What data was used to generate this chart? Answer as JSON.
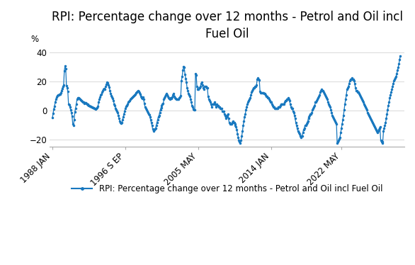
{
  "title": "RPI: Percentage change over 12 months - Petrol and Oil incl\nFuel Oil",
  "ylabel": "%",
  "legend_label": "RPI: Percentage change over 12 months - Petrol and Oil incl Fuel Oil",
  "line_color": "#1878bf",
  "marker_color": "#1878bf",
  "background_color": "#ffffff",
  "grid_color": "#d9d9d9",
  "ylim": [
    -25,
    45
  ],
  "yticks": [
    -20,
    0,
    20,
    40
  ],
  "xtick_labels": [
    "1988 JAN",
    "1996 S EP",
    "2005 MAY",
    "2014 JAN",
    "2022 MAY"
  ],
  "title_fontsize": 12,
  "legend_fontsize": 8.5,
  "axis_fontsize": 8.5,
  "start_year": 1988.0,
  "xtick_positions": [
    1988.0,
    1996.667,
    2005.333,
    2014.0,
    2022.333
  ],
  "y": [
    -5.2,
    -2.1,
    0.8,
    3.0,
    5.5,
    7.8,
    9.2,
    10.1,
    10.4,
    10.5,
    10.9,
    11.2,
    12.0,
    13.5,
    15.2,
    16.5,
    17.5,
    27.3,
    30.5,
    28.8,
    17.0,
    15.5,
    12.9,
    4.2,
    3.9,
    2.1,
    0.2,
    -1.5,
    -3.8,
    -9.5,
    -10.2,
    -6.5,
    -1.2,
    1.5,
    4.2,
    7.5,
    8.5,
    8.8,
    8.2,
    7.6,
    7.0,
    6.5,
    6.0,
    5.8,
    5.5,
    4.9,
    5.2,
    5.1,
    4.8,
    4.5,
    4.2,
    3.9,
    3.5,
    3.2,
    3.0,
    2.8,
    2.5,
    2.2,
    2.0,
    1.8,
    1.5,
    1.2,
    1.0,
    1.5,
    2.0,
    3.0,
    5.5,
    7.5,
    9.0,
    10.5,
    11.2,
    12.5,
    13.5,
    14.5,
    15.0,
    14.5,
    16.5,
    18.2,
    19.5,
    18.8,
    17.5,
    16.2,
    13.5,
    11.5,
    10.2,
    9.0,
    8.0,
    6.8,
    4.5,
    3.2,
    1.5,
    0.5,
    -0.5,
    -1.5,
    -3.5,
    -5.5,
    -7.5,
    -8.5,
    -9.0,
    -8.5,
    -6.5,
    -4.5,
    -2.5,
    -0.5,
    1.5,
    2.8,
    3.5,
    4.5,
    5.5,
    6.0,
    6.5,
    7.5,
    8.0,
    8.5,
    9.0,
    9.5,
    10.0,
    10.5,
    11.0,
    12.0,
    12.5,
    13.0,
    13.5,
    13.0,
    12.0,
    11.0,
    9.8,
    8.5,
    8.0,
    9.0,
    7.5,
    5.0,
    2.5,
    1.5,
    0.5,
    -0.5,
    -1.5,
    -2.5,
    -3.0,
    -4.5,
    -6.5,
    -8.5,
    -10.5,
    -13.0,
    -14.5,
    -13.5,
    -13.0,
    -12.5,
    -10.5,
    -8.5,
    -6.5,
    -4.5,
    -3.5,
    -1.5,
    0.5,
    2.0,
    3.5,
    4.5,
    4.8,
    7.5,
    8.5,
    9.5,
    10.5,
    11.5,
    10.5,
    9.5,
    8.5,
    8.0,
    7.5,
    8.5,
    8.0,
    9.0,
    10.5,
    11.5,
    9.5,
    8.5,
    8.0,
    7.5,
    7.5,
    7.5,
    7.5,
    8.5,
    9.0,
    10.0,
    20.5,
    23.5,
    27.5,
    30.0,
    29.5,
    25.0,
    22.0,
    19.5,
    15.5,
    13.5,
    11.5,
    10.5,
    9.5,
    7.5,
    5.5,
    3.5,
    2.5,
    1.0,
    0.5,
    0.5,
    25.5,
    24.5,
    16.5,
    14.5,
    14.5,
    15.5,
    15.5,
    16.5,
    18.5,
    19.5,
    17.5,
    15.5,
    14.5,
    16.5,
    16.5,
    16.5,
    15.5,
    15.5,
    9.5,
    7.5,
    6.5,
    5.5,
    4.5,
    2.5,
    4.5,
    4.5,
    4.5,
    5.5,
    4.5,
    2.5,
    4.5,
    3.5,
    3.5,
    2.5,
    2.5,
    1.5,
    1.5,
    1.5,
    -0.5,
    -0.5,
    -0.5,
    -2.5,
    -3.5,
    -5.5,
    -4.5,
    -3.5,
    -2.5,
    -5.5,
    -8.5,
    -9.5,
    -9.5,
    -9.5,
    -8.5,
    -7.5,
    -8.5,
    -8.5,
    -9.5,
    -10.5,
    -11.5,
    -13.5,
    -16.5,
    -18.5,
    -20.5,
    -21.5,
    -22.5,
    -20.5,
    -17.5,
    -14.5,
    -10.5,
    -7.5,
    -4.5,
    -2.5,
    0.5,
    2.5,
    4.5,
    5.5,
    6.5,
    7.5,
    8.5,
    10.5,
    12.5,
    13.5,
    14.5,
    15.5,
    15.5,
    16.5,
    16.5,
    17.5,
    21.5,
    22.5,
    21.5,
    21.0,
    13.0,
    12.0,
    12.0,
    12.0,
    12.0,
    12.0,
    11.5,
    11.5,
    10.5,
    9.5,
    9.5,
    8.5,
    8.5,
    7.5,
    6.5,
    5.5,
    5.5,
    4.5,
    3.5,
    2.5,
    2.5,
    1.5,
    1.5,
    1.5,
    1.5,
    1.5,
    2.5,
    2.5,
    2.5,
    3.5,
    4.5,
    4.5,
    4.5,
    4.5,
    4.5,
    5.5,
    6.5,
    6.5,
    7.5,
    7.5,
    8.5,
    7.5,
    6.5,
    4.5,
    2.5,
    1.5,
    1.5,
    -0.5,
    -1.5,
    -3.5,
    -5.5,
    -8.5,
    -10.5,
    -12.5,
    -14.5,
    -15.5,
    -16.5,
    -17.5,
    -18.5,
    -17.5,
    -17.5,
    -15.5,
    -13.5,
    -12.5,
    -10.5,
    -10.5,
    -9.5,
    -8.5,
    -7.5,
    -5.5,
    -4.5,
    -3.5,
    -2.5,
    -2.5,
    -1.5,
    0.5,
    1.5,
    2.5,
    3.5,
    5.5,
    5.5,
    6.5,
    7.5,
    8.5,
    9.5,
    10.5,
    12.5,
    13.5,
    14.5,
    13.5,
    13.5,
    12.5,
    11.5,
    10.5,
    9.5,
    8.5,
    7.5,
    5.5,
    4.5,
    3.5,
    2.5,
    0.5,
    -1.5,
    -3.5,
    -4.5,
    -5.5,
    -6.5,
    -7.5,
    -8.5,
    -9.5,
    -22.5,
    -21.5,
    -20.5,
    -19.5,
    -18.5,
    -15.5,
    -12.5,
    -9.5,
    -6.5,
    -3.5,
    0.5,
    4.5,
    7.5,
    10.5,
    14.5,
    15.5,
    16.5,
    18.5,
    20.5,
    21.5,
    21.5,
    22.5,
    21.5,
    21.5,
    20.5,
    18.5,
    15.5,
    13.5,
    13.5,
    12.5,
    12.5,
    11.5,
    10.5,
    9.5,
    8.5,
    7.5,
    6.5,
    5.5,
    4.5,
    3.5,
    2.5,
    1.5,
    0.5,
    -1.5,
    -2.5,
    -3.5,
    -4.5,
    -5.5,
    -6.5,
    -7.5,
    -8.5,
    -9.5,
    -10.5,
    -11.5,
    -12.5,
    -13.5,
    -14.5,
    -15.5,
    -14.5,
    -13.5,
    -12.5,
    -11.5,
    -20.5,
    -21.5,
    -22.5,
    -21.5,
    -14.5,
    -12.5,
    -10.5,
    -8.5,
    -5.5,
    -2.5,
    0.5,
    3.5,
    5.5,
    8.5,
    10.5,
    12.5,
    14.5,
    16.5,
    18.5,
    20.5,
    21.5,
    22.5,
    23.5,
    25.5,
    27.5,
    29.5,
    32.0,
    35.0,
    37.5
  ]
}
